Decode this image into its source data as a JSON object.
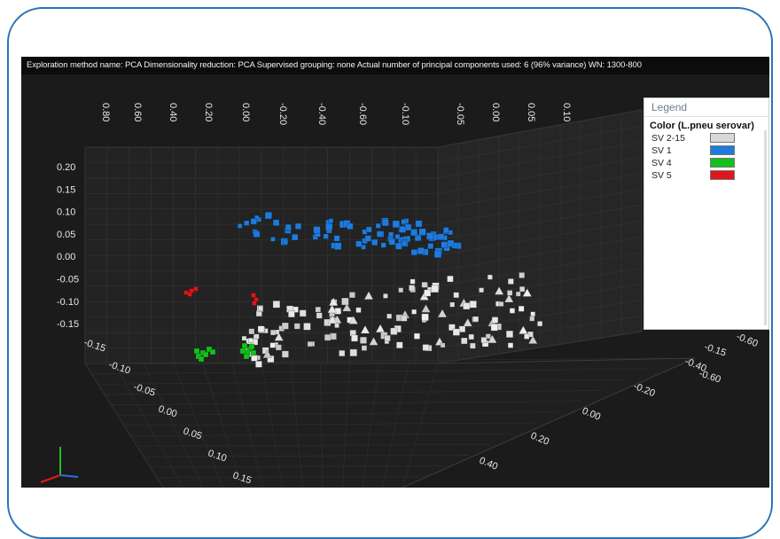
{
  "header": {
    "text": "Exploration method name: PCA   Dimensionality reduction: PCA   Supervised grouping: none   Actual number of principal components used: 6 (96% variance)   WN: 1300-800"
  },
  "legend": {
    "title": "Legend",
    "subtitle": "Color (L.pneu serovar)",
    "items": [
      {
        "label": "SV 2-15",
        "color": "#d8d8d8"
      },
      {
        "label": "SV 1",
        "color": "#1e7bdc"
      },
      {
        "label": "SV 4",
        "color": "#12c21b"
      },
      {
        "label": "SV 5",
        "color": "#e0161c"
      }
    ]
  },
  "chart_data": {
    "type": "scatter",
    "projection": "3d",
    "grid": true,
    "background": "#1b1b1b",
    "legend_placement": "right",
    "axes": {
      "top_ticks": [
        "0.80",
        "0.60",
        "0.40",
        "0.20",
        "0.00",
        "-0.20",
        "-0.40",
        "-0.60",
        "-0.10",
        "-0.05",
        "0.00",
        "0.05",
        "0.10"
      ],
      "left_ticks": [
        "0.20",
        "0.15",
        "0.10",
        "0.05",
        "0.00",
        "-0.05",
        "-0.10",
        "-0.15"
      ],
      "bottom_left_ticks": [
        "-0.15",
        "-0.10",
        "-0.05",
        "0.00",
        "0.05",
        "0.10",
        "0.15"
      ],
      "bottom_right_ticks": [
        "0.40",
        "0.20",
        "0.00",
        "-0.20",
        "-0.40",
        "-0.60"
      ],
      "right_ticks": [
        "-0.15",
        "-0.60"
      ]
    },
    "series": [
      {
        "name": "SV 1",
        "color": "#1e7bdc",
        "count": 95
      },
      {
        "name": "SV 2-15",
        "color": "#d8d8d8",
        "count": 150
      },
      {
        "name": "SV 4",
        "color": "#12c21b",
        "count": 14
      },
      {
        "name": "SV 5",
        "color": "#e0161c",
        "count": 7
      }
    ],
    "point_clusters": [
      {
        "name": "SV 1",
        "cx": 380,
        "cy": 208,
        "rx": 125,
        "ry": 18
      },
      {
        "name": "SV 2-15",
        "cx": 430,
        "cy": 330,
        "rx": 165,
        "ry": 42
      },
      {
        "name": "SV 4",
        "cx": 250,
        "cy": 397,
        "rx": 35,
        "ry": 8
      },
      {
        "name": "SV 5",
        "cx": 240,
        "cy": 330,
        "rx": 30,
        "ry": 5
      }
    ]
  }
}
